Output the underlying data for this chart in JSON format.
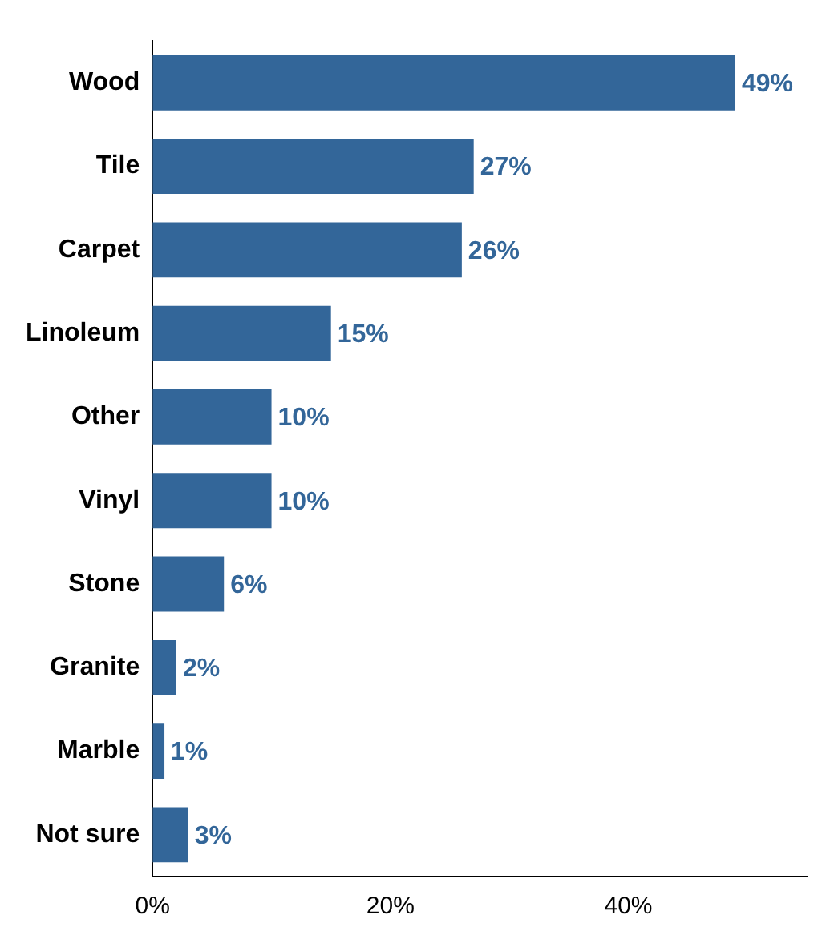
{
  "chart_data": {
    "type": "bar",
    "orientation": "horizontal",
    "categories": [
      "Wood",
      "Tile",
      "Carpet",
      "Linoleum",
      "Other",
      "Vinyl",
      "Stone",
      "Granite",
      "Marble",
      "Not sure"
    ],
    "values": [
      49,
      27,
      26,
      15,
      10,
      10,
      6,
      2,
      1,
      3
    ],
    "value_labels": [
      "49%",
      "27%",
      "26%",
      "15%",
      "10%",
      "10%",
      "6%",
      "2%",
      "1%",
      "3%"
    ],
    "color": "#336699",
    "xlim": [
      0,
      55
    ],
    "xticks": [
      {
        "value": 0,
        "label": "0%"
      },
      {
        "value": 20,
        "label": "20%"
      },
      {
        "value": 40,
        "label": "40%"
      }
    ],
    "grid": false,
    "legend": false
  }
}
